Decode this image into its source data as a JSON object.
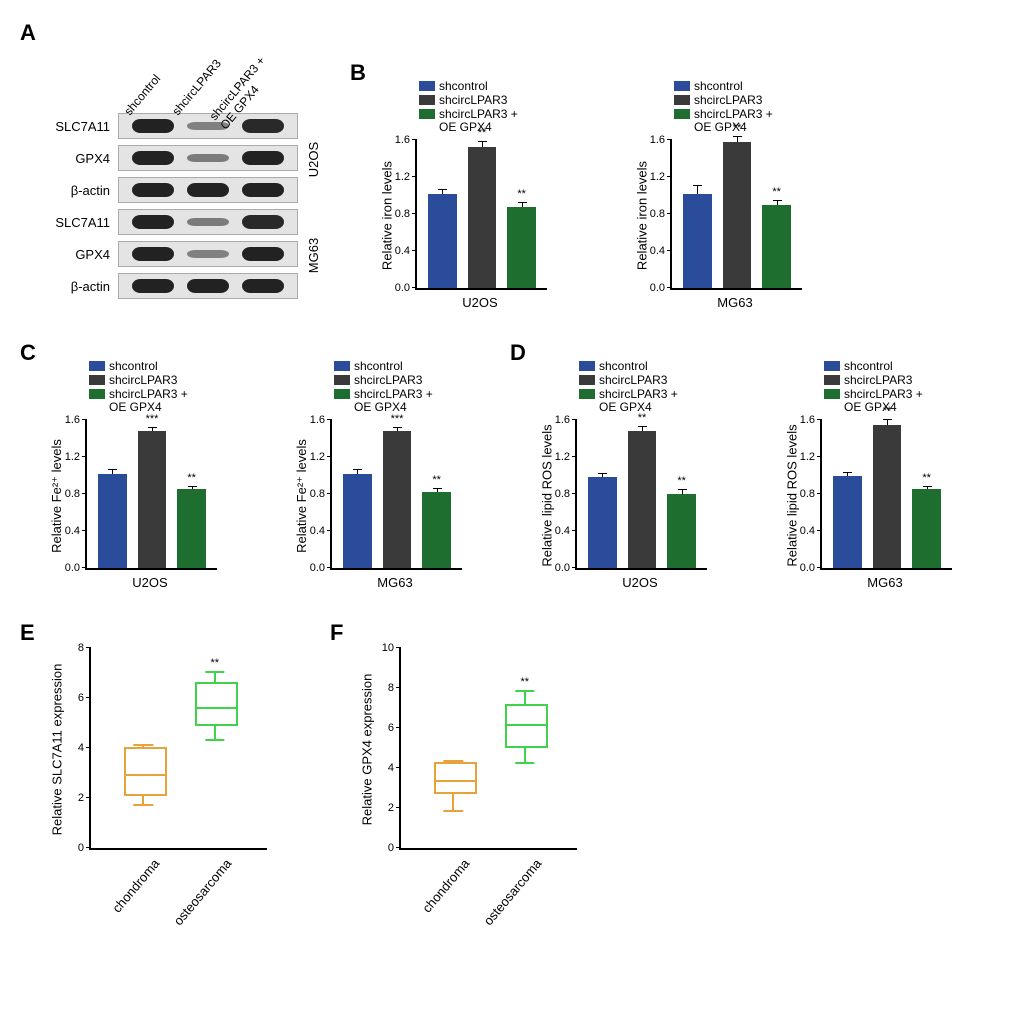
{
  "colors": {
    "shcontrol": "#2b4b9b",
    "shcircLPAR3": "#3a3a3a",
    "shcircLPAR3_OE": "#1e6e2f",
    "chondroma": "#e8a23a",
    "osteosarcoma": "#3fd24a",
    "axis": "#000000"
  },
  "panelA": {
    "label": "A",
    "lane_labels": [
      "shcontrol",
      "shcircLPAR3",
      "shcircLPAR3 +\nOE GPX4"
    ],
    "cell_lines": [
      "U2OS",
      "MG63"
    ],
    "proteins": [
      "SLC7A11",
      "GPX4",
      "β-actin",
      "SLC7A11",
      "GPX4",
      "β-actin"
    ],
    "band_intensity": [
      [
        1.0,
        0.25,
        0.95
      ],
      [
        1.0,
        0.3,
        1.05
      ],
      [
        1.0,
        1.0,
        1.0
      ],
      [
        1.0,
        0.3,
        0.95
      ],
      [
        1.0,
        0.25,
        1.0
      ],
      [
        1.0,
        1.0,
        1.0
      ]
    ]
  },
  "legend": {
    "items": [
      "shcontrol",
      "shcircLPAR3",
      "shcircLPAR3 +\nOE GPX4"
    ]
  },
  "panelB": {
    "label": "B",
    "ylabel": "Relative iron levels",
    "ylim": [
      0,
      1.6
    ],
    "ytick_step": 0.4,
    "groups": [
      "U2OS",
      "MG63"
    ],
    "U2OS": {
      "values": [
        1.02,
        1.52,
        0.88
      ],
      "err": [
        0.05,
        0.07,
        0.05
      ],
      "sig": [
        "",
        "**",
        "**"
      ]
    },
    "MG63": {
      "values": [
        1.02,
        1.58,
        0.9
      ],
      "err": [
        0.09,
        0.06,
        0.05
      ],
      "sig": [
        "",
        "**",
        "**"
      ]
    }
  },
  "panelC": {
    "label": "C",
    "ylabel": "Relative Fe²⁺ levels",
    "ylim": [
      0,
      1.6
    ],
    "ytick_step": 0.4,
    "groups": [
      "U2OS",
      "MG63"
    ],
    "U2OS": {
      "values": [
        1.02,
        1.48,
        0.85
      ],
      "err": [
        0.05,
        0.04,
        0.04
      ],
      "sig": [
        "",
        "***",
        "**"
      ]
    },
    "MG63": {
      "values": [
        1.02,
        1.48,
        0.82
      ],
      "err": [
        0.05,
        0.04,
        0.04
      ],
      "sig": [
        "",
        "***",
        "**"
      ]
    }
  },
  "panelD": {
    "label": "D",
    "ylabel": "Relative lipid ROS levels",
    "ylim": [
      0,
      1.6
    ],
    "ytick_step": 0.4,
    "groups": [
      "U2OS",
      "MG63"
    ],
    "U2OS": {
      "values": [
        0.98,
        1.48,
        0.8
      ],
      "err": [
        0.05,
        0.06,
        0.05
      ],
      "sig": [
        "",
        "**",
        "**"
      ]
    },
    "MG63": {
      "values": [
        1.0,
        1.55,
        0.85
      ],
      "err": [
        0.04,
        0.06,
        0.04
      ],
      "sig": [
        "",
        "**",
        "**"
      ]
    }
  },
  "panelE": {
    "label": "E",
    "ylabel": "Relative SLC7A11  expression",
    "ylim": [
      0,
      8
    ],
    "ytick_step": 2,
    "categories": [
      "chondroma",
      "osteosarcoma"
    ],
    "boxes": [
      {
        "min": 1.7,
        "q1": 2.1,
        "median": 2.8,
        "q3": 3.9,
        "max": 4.1,
        "sig": ""
      },
      {
        "min": 4.3,
        "q1": 4.9,
        "median": 5.5,
        "q3": 6.5,
        "max": 7.0,
        "sig": "**"
      }
    ]
  },
  "panelF": {
    "label": "F",
    "ylabel": "Relative GPX4 expression",
    "ylim": [
      0,
      10
    ],
    "ytick_step": 2,
    "categories": [
      "chondroma",
      "osteosarcoma"
    ],
    "boxes": [
      {
        "min": 1.8,
        "q1": 2.7,
        "median": 3.2,
        "q3": 4.1,
        "max": 4.3,
        "sig": ""
      },
      {
        "min": 4.2,
        "q1": 5.0,
        "median": 6.0,
        "q3": 7.0,
        "max": 7.8,
        "sig": "**"
      }
    ]
  }
}
